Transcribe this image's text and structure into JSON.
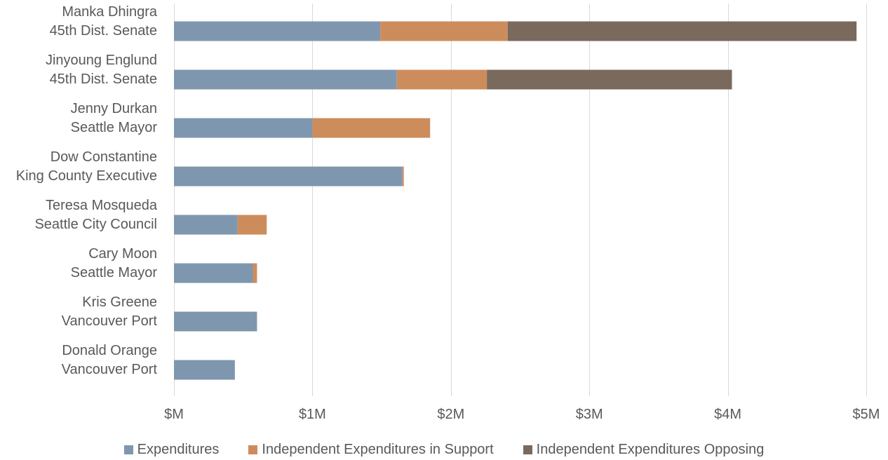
{
  "chart_data": {
    "type": "bar",
    "orientation": "horizontal",
    "stacked": true,
    "title": "",
    "xlabel": "",
    "ylabel": "",
    "categories": [
      [
        "Manka Dhingra",
        "45th Dist. Senate"
      ],
      [
        "Jinyoung Englund",
        "45th Dist. Senate"
      ],
      [
        "Jenny Durkan",
        "Seattle Mayor"
      ],
      [
        "Dow Constantine",
        "King County Executive"
      ],
      [
        "Teresa Mosqueda",
        "Seattle City Council"
      ],
      [
        "Cary Moon",
        "Seattle Mayor"
      ],
      [
        "Kris Greene",
        "Vancouver Port"
      ],
      [
        "Donald Orange",
        "Vancouver Port"
      ]
    ],
    "series": [
      {
        "name": "Expenditures",
        "color": "#7f97ae",
        "values": [
          1.49,
          1.61,
          1.0,
          1.65,
          0.46,
          0.57,
          0.6,
          0.44
        ]
      },
      {
        "name": "Independent Expenditures in Support",
        "color": "#cd8c5c",
        "values": [
          0.92,
          0.65,
          0.85,
          0.01,
          0.21,
          0.03,
          0.0,
          0.0
        ]
      },
      {
        "name": "Independent Expenditures Opposing",
        "color": "#7a6a5e",
        "values": [
          2.52,
          1.77,
          0.0,
          0.0,
          0.0,
          0.0,
          0.0,
          0.0
        ]
      }
    ],
    "xlim": [
      0,
      5
    ],
    "x_ticks": [
      0,
      1,
      2,
      3,
      4,
      5
    ],
    "x_tick_labels": [
      "$M",
      "$1M",
      "$2M",
      "$3M",
      "$4M",
      "$5M"
    ],
    "grid": "vertical",
    "legend_position": "bottom"
  }
}
